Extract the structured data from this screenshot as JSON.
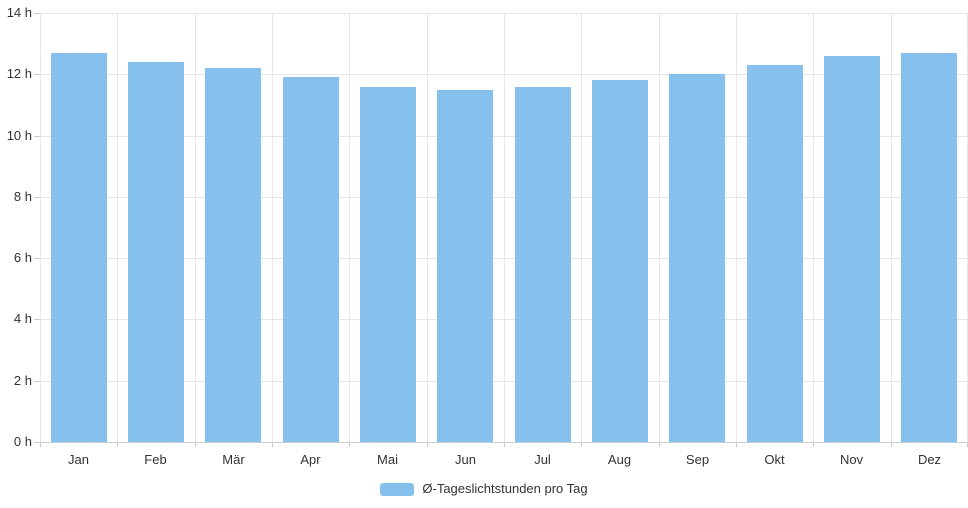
{
  "chart_data": {
    "type": "bar",
    "title": "",
    "xlabel": "",
    "ylabel": "",
    "unit": "h",
    "categories": [
      "Jan",
      "Feb",
      "Mär",
      "Apr",
      "Mai",
      "Jun",
      "Jul",
      "Aug",
      "Sep",
      "Okt",
      "Nov",
      "Dez"
    ],
    "series": [
      {
        "name": "Ø-Tageslichtstunden pro Tag",
        "values": [
          12.7,
          12.4,
          12.2,
          11.9,
          11.6,
          11.5,
          11.6,
          11.8,
          12.0,
          12.3,
          12.6,
          12.7
        ]
      }
    ],
    "ylim": [
      0,
      14
    ],
    "ytick_step": 2,
    "ytick_labels": [
      "0 h",
      "2 h",
      "4 h",
      "6 h",
      "8 h",
      "10 h",
      "12 h",
      "14 h"
    ],
    "grid": true,
    "legend_position": "bottom-center",
    "colors": {
      "bar": "#85C1EC",
      "gridline_h": "#E6E6E6",
      "gridline_v": "#E7E7E7",
      "axis": "#C6CDD6",
      "text": "#333333",
      "background": "#FFFFFF"
    }
  }
}
